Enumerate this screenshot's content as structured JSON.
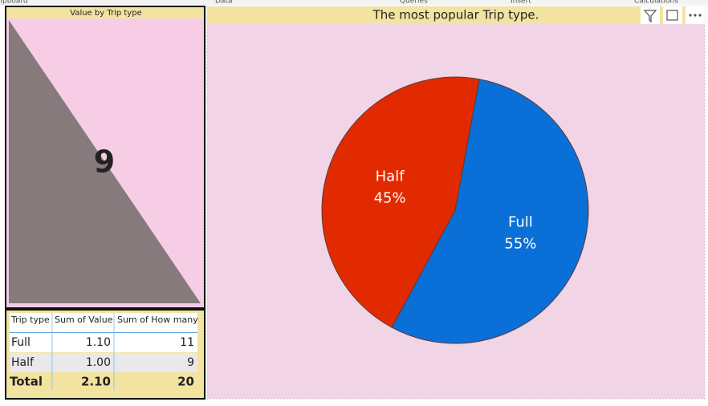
{
  "ribbon": [
    "lipboard",
    "Data",
    "Queries",
    "Insert",
    "Calculations"
  ],
  "card": {
    "title": "Value by Trip type",
    "value": "9"
  },
  "chart_data": {
    "type": "pie",
    "title": "The most popular Trip type.",
    "categories": [
      "Full",
      "Half"
    ],
    "values": [
      55,
      45
    ],
    "value_labels": [
      "55%",
      "45%"
    ],
    "colors": [
      "#0a6fd6",
      "#e12a00"
    ]
  },
  "table": {
    "headers": [
      "Trip type",
      "Sum of Value",
      "Sum of How many"
    ],
    "rows": [
      [
        "Full",
        "1.10",
        "11"
      ],
      [
        "Half",
        "1.00",
        "9"
      ]
    ],
    "total": [
      "Total",
      "2.10",
      "20"
    ]
  }
}
